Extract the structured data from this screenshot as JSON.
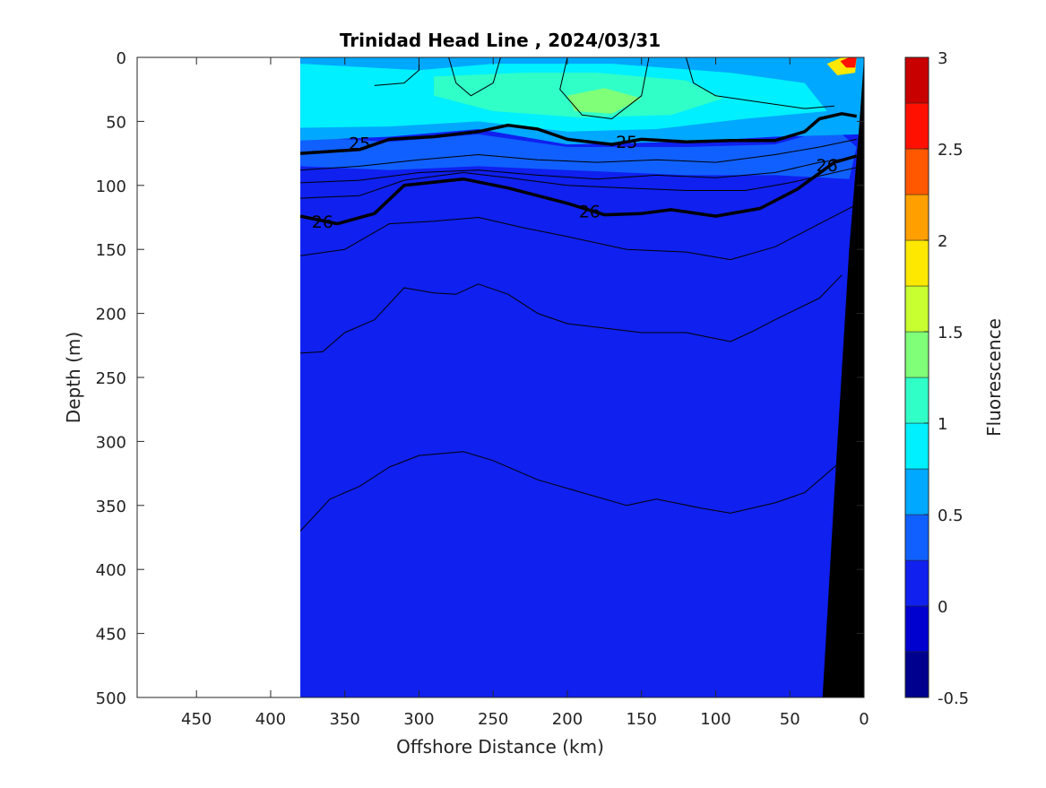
{
  "chart_data": {
    "type": "heatmap",
    "title": "Trinidad Head Line , 2024/03/31",
    "xlabel": "Offshore Distance (km)",
    "ylabel": "Depth (m)",
    "xlim": [
      490,
      0
    ],
    "ylim": [
      0,
      500
    ],
    "x_reversed": true,
    "y_reversed": true,
    "xticks": [
      "450",
      "400",
      "350",
      "300",
      "250",
      "200",
      "150",
      "100",
      "50",
      "0"
    ],
    "xtick_values": [
      450,
      400,
      350,
      300,
      250,
      200,
      150,
      100,
      50,
      0
    ],
    "yticks": [
      "0",
      "50",
      "100",
      "150",
      "200",
      "250",
      "300",
      "350",
      "400",
      "450",
      "500"
    ],
    "ytick_values": [
      0,
      50,
      100,
      150,
      200,
      250,
      300,
      350,
      400,
      450,
      500
    ],
    "data_extent_km": [
      380,
      0
    ],
    "colorbar": {
      "label": "Fluorescence",
      "ticks": [
        "3",
        "2.5",
        "2",
        "1.5",
        "1",
        "0.5",
        "0",
        "-0.5"
      ],
      "tick_values": [
        3,
        2.5,
        2,
        1.5,
        1,
        0.5,
        0,
        -0.5
      ],
      "range": [
        -0.5,
        3
      ],
      "levels": [
        -0.5,
        -0.25,
        0,
        0.25,
        0.5,
        0.75,
        1,
        1.25,
        1.5,
        1.75,
        2,
        2.25,
        2.5,
        2.75,
        3
      ],
      "colors": [
        "#00008f",
        "#0000cf",
        "#0f20ef",
        "#1060ff",
        "#00a8ff",
        "#00f0ff",
        "#30ffc8",
        "#80ff78",
        "#c8ff30",
        "#ffe800",
        "#ffa000",
        "#ff5800",
        "#ff1000",
        "#c80000"
      ]
    },
    "fluorescence_regions": [
      {
        "level": 0.5,
        "color_index": 4,
        "points": [
          [
            380,
            0
          ],
          [
            0,
            0
          ],
          [
            0,
            60
          ],
          [
            60,
            62
          ],
          [
            120,
            66
          ],
          [
            200,
            68
          ],
          [
            260,
            56
          ],
          [
            320,
            62
          ],
          [
            380,
            65
          ]
        ]
      },
      {
        "level": 0.75,
        "color_index": 5,
        "points": [
          [
            380,
            5
          ],
          [
            300,
            10
          ],
          [
            250,
            5
          ],
          [
            170,
            5
          ],
          [
            90,
            12
          ],
          [
            40,
            20
          ],
          [
            25,
            42
          ],
          [
            80,
            48
          ],
          [
            140,
            56
          ],
          [
            200,
            58
          ],
          [
            260,
            50
          ],
          [
            320,
            54
          ],
          [
            380,
            55
          ]
        ]
      },
      {
        "level": 1.0,
        "color_index": 6,
        "points": [
          [
            290,
            15
          ],
          [
            230,
            12
          ],
          [
            180,
            12
          ],
          [
            120,
            18
          ],
          [
            95,
            32
          ],
          [
            130,
            45
          ],
          [
            190,
            47
          ],
          [
            250,
            42
          ],
          [
            290,
            30
          ]
        ]
      },
      {
        "level": 1.25,
        "color_index": 7,
        "points": [
          [
            200,
            30
          ],
          [
            175,
            24
          ],
          [
            150,
            32
          ],
          [
            170,
            44
          ],
          [
            195,
            42
          ]
        ]
      },
      {
        "level": 0.5,
        "color_index": 4,
        "points": [
          [
            40,
            5
          ],
          [
            20,
            0
          ],
          [
            5,
            0
          ],
          [
            5,
            20
          ],
          [
            30,
            25
          ]
        ]
      },
      {
        "level": 1.5,
        "color_index": 9,
        "points": [
          [
            25,
            5
          ],
          [
            15,
            0
          ],
          [
            5,
            0
          ],
          [
            6,
            12
          ],
          [
            18,
            14
          ]
        ]
      },
      {
        "level": 2.5,
        "color_index": 12,
        "points": [
          [
            16,
            3
          ],
          [
            10,
            0
          ],
          [
            5,
            0
          ],
          [
            6,
            8
          ],
          [
            12,
            8
          ]
        ]
      },
      {
        "level": 0.25,
        "color_index": 3,
        "points": [
          [
            380,
            62
          ],
          [
            320,
            66
          ],
          [
            260,
            60
          ],
          [
            200,
            70
          ],
          [
            120,
            70
          ],
          [
            60,
            68
          ],
          [
            20,
            55
          ],
          [
            5,
            70
          ],
          [
            10,
            95
          ],
          [
            60,
            92
          ],
          [
            120,
            92
          ],
          [
            200,
            88
          ],
          [
            260,
            85
          ],
          [
            320,
            88
          ],
          [
            380,
            85
          ]
        ]
      },
      {
        "level": 0.5,
        "color_index": 4,
        "points": [
          [
            140,
            5
          ],
          [
            110,
            2
          ],
          [
            95,
            6
          ],
          [
            110,
            10
          ],
          [
            135,
            10
          ]
        ]
      }
    ],
    "density_contours": [
      {
        "label": "25",
        "bold": true,
        "label_at": [
          [
            340,
            67
          ],
          [
            160,
            66
          ]
        ],
        "points": [
          [
            380,
            75
          ],
          [
            340,
            72
          ],
          [
            320,
            64
          ],
          [
            290,
            62
          ],
          [
            260,
            58
          ],
          [
            240,
            53
          ],
          [
            220,
            56
          ],
          [
            200,
            64
          ],
          [
            170,
            68
          ],
          [
            150,
            64
          ],
          [
            120,
            66
          ],
          [
            90,
            65
          ],
          [
            60,
            65
          ],
          [
            40,
            58
          ],
          [
            30,
            48
          ],
          [
            15,
            44
          ],
          [
            5,
            46
          ]
        ]
      },
      {
        "label": "26",
        "bold": true,
        "label_at": [
          [
            365,
            128
          ],
          [
            185,
            120
          ],
          [
            25,
            84
          ]
        ],
        "points": [
          [
            380,
            124
          ],
          [
            355,
            130
          ],
          [
            330,
            122
          ],
          [
            310,
            100
          ],
          [
            270,
            95
          ],
          [
            240,
            102
          ],
          [
            200,
            114
          ],
          [
            175,
            123
          ],
          [
            150,
            122
          ],
          [
            130,
            119
          ],
          [
            100,
            124
          ],
          [
            70,
            118
          ],
          [
            45,
            103
          ],
          [
            20,
            82
          ],
          [
            5,
            77
          ]
        ]
      },
      {
        "label": "",
        "bold": false,
        "points": [
          [
            380,
            88
          ],
          [
            340,
            85
          ],
          [
            300,
            80
          ],
          [
            260,
            76
          ],
          [
            220,
            80
          ],
          [
            180,
            82
          ],
          [
            140,
            80
          ],
          [
            100,
            82
          ],
          [
            60,
            76
          ],
          [
            30,
            70
          ],
          [
            5,
            64
          ]
        ]
      },
      {
        "label": "",
        "bold": false,
        "points": [
          [
            380,
            98
          ],
          [
            340,
            96
          ],
          [
            300,
            90
          ],
          [
            260,
            88
          ],
          [
            220,
            92
          ],
          [
            180,
            95
          ],
          [
            140,
            92
          ],
          [
            100,
            94
          ],
          [
            60,
            90
          ],
          [
            30,
            82
          ],
          [
            5,
            78
          ]
        ]
      },
      {
        "label": "",
        "bold": false,
        "points": [
          [
            380,
            110
          ],
          [
            340,
            108
          ],
          [
            310,
            96
          ],
          [
            270,
            90
          ],
          [
            240,
            94
          ],
          [
            200,
            100
          ],
          [
            160,
            102
          ],
          [
            120,
            104
          ],
          [
            80,
            104
          ],
          [
            50,
            98
          ],
          [
            20,
            90
          ],
          [
            5,
            86
          ]
        ]
      },
      {
        "label": "",
        "bold": false,
        "points": [
          [
            380,
            155
          ],
          [
            350,
            150
          ],
          [
            320,
            130
          ],
          [
            290,
            128
          ],
          [
            260,
            125
          ],
          [
            230,
            133
          ],
          [
            200,
            140
          ],
          [
            160,
            150
          ],
          [
            120,
            152
          ],
          [
            90,
            158
          ],
          [
            60,
            148
          ],
          [
            30,
            130
          ],
          [
            5,
            115
          ]
        ]
      },
      {
        "label": "",
        "bold": false,
        "points": [
          [
            380,
            231
          ],
          [
            365,
            230
          ],
          [
            350,
            215
          ],
          [
            330,
            205
          ],
          [
            310,
            180
          ],
          [
            290,
            184
          ],
          [
            275,
            185
          ],
          [
            260,
            177
          ],
          [
            240,
            185
          ],
          [
            220,
            200
          ],
          [
            200,
            208
          ],
          [
            150,
            215
          ],
          [
            120,
            215
          ],
          [
            90,
            222
          ],
          [
            75,
            214
          ],
          [
            60,
            205
          ],
          [
            30,
            188
          ],
          [
            15,
            170
          ]
        ]
      },
      {
        "label": "",
        "bold": false,
        "points": [
          [
            380,
            370
          ],
          [
            360,
            345
          ],
          [
            340,
            335
          ],
          [
            320,
            320
          ],
          [
            300,
            311
          ],
          [
            270,
            308
          ],
          [
            250,
            315
          ],
          [
            220,
            330
          ],
          [
            190,
            340
          ],
          [
            160,
            350
          ],
          [
            140,
            345
          ],
          [
            110,
            352
          ],
          [
            90,
            356
          ],
          [
            60,
            348
          ],
          [
            40,
            340
          ],
          [
            25,
            325
          ],
          [
            15,
            315
          ]
        ]
      },
      {
        "label": "",
        "bold": false,
        "points": [
          [
            330,
            22
          ],
          [
            310,
            20
          ],
          [
            300,
            10
          ],
          [
            300,
            0
          ]
        ]
      },
      {
        "label": "",
        "bold": false,
        "points": [
          [
            280,
            0
          ],
          [
            275,
            20
          ],
          [
            265,
            30
          ],
          [
            250,
            20
          ],
          [
            245,
            0
          ]
        ]
      },
      {
        "label": "",
        "bold": false,
        "points": [
          [
            200,
            0
          ],
          [
            205,
            25
          ],
          [
            190,
            45
          ],
          [
            170,
            48
          ],
          [
            150,
            30
          ],
          [
            145,
            0
          ]
        ]
      },
      {
        "label": "",
        "bold": false,
        "points": [
          [
            120,
            0
          ],
          [
            115,
            20
          ],
          [
            100,
            30
          ],
          [
            70,
            35
          ],
          [
            40,
            40
          ],
          [
            20,
            38
          ]
        ]
      }
    ],
    "topography": {
      "color": "#000000",
      "points": [
        [
          0,
          0
        ],
        [
          0,
          500
        ],
        [
          28,
          500
        ],
        [
          20,
          340
        ],
        [
          10,
          150
        ],
        [
          3,
          50
        ]
      ]
    },
    "grid": false,
    "legend": "none",
    "colorbar_position": "right"
  }
}
